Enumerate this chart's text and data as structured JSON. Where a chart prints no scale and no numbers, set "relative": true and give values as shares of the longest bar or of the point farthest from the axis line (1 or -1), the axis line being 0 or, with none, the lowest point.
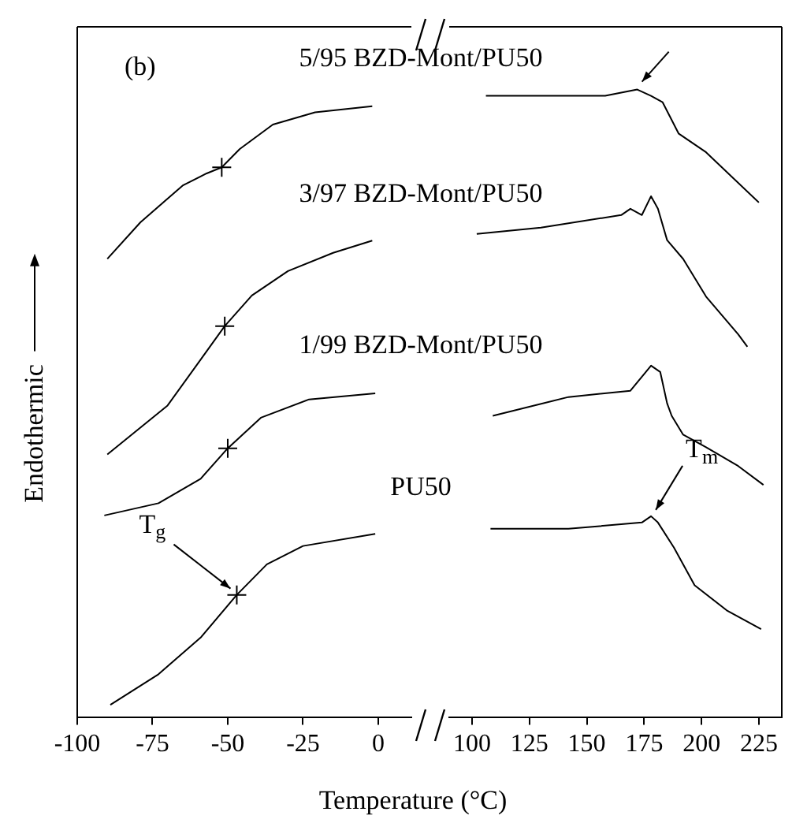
{
  "chart_data": [
    {
      "type": "line",
      "xlabel": "Temperature (°C)",
      "ylabel": "Endothermic",
      "relative": true,
      "xlim": [
        -100,
        11
      ],
      "xticks": [
        -100,
        -75,
        -50,
        -25,
        0
      ],
      "annotations": [
        "(b)",
        {
          "text": "T$_{g}$",
          "x": -47,
          "y": 0.2
        }
      ],
      "series": [
        {
          "name": "5/95 BZD-Mont/PU50",
          "color": "#000000",
          "x": [
            -90,
            -79,
            -65,
            -57,
            -52,
            -46,
            -35,
            -21,
            -2
          ],
          "values": [
            0.75,
            0.81,
            0.87,
            0.89,
            0.9,
            0.93,
            0.97,
            0.99,
            1
          ]
        },
        {
          "name": "3/97 BZD-Mont/PU50",
          "color": "#000000",
          "x": [
            -90,
            -75,
            -70,
            -51,
            -42,
            -30,
            -15,
            -2
          ],
          "values": [
            0.43,
            0.49,
            0.51,
            0.64,
            0.69,
            0.73,
            0.76,
            0.78
          ]
        },
        {
          "name": "1/99 BZD-Mont/PU50",
          "color": "#000000",
          "x": [
            -91,
            -73,
            -59,
            -50,
            -39,
            -23,
            -1
          ],
          "values": [
            0.33,
            0.35,
            0.39,
            0.44,
            0.49,
            0.52,
            0.53
          ]
        },
        {
          "name": "PU50",
          "color": "#000000",
          "x": [
            -89,
            -73,
            -59,
            -47,
            -37,
            -25,
            -1
          ],
          "values": [
            0.02,
            0.07,
            0.13,
            0.2,
            0.25,
            0.28,
            0.3
          ]
        },
        {
          "type": "scatter",
          "marker": "cross",
          "color": "#000000",
          "x": [
            -52,
            -51,
            -50,
            -47
          ],
          "values": [
            0.9,
            0.64,
            0.44,
            0.2
          ]
        }
      ]
    },
    {
      "type": "line",
      "relative": true,
      "xlim": [
        90,
        235
      ],
      "xticks": [
        100,
        125,
        150,
        175,
        200,
        225
      ],
      "annotations": [
        {
          "text": "T$_{m}$",
          "x": 178,
          "y": 0.32
        }
      ],
      "series": [
        {
          "color": "#000000",
          "x": [
            106,
            130,
            158,
            172,
            178,
            183,
            190,
            202,
            225
          ],
          "values": [
            0.99,
            0.99,
            0.99,
            1,
            0.99,
            0.98,
            0.93,
            0.9,
            0.82
          ]
        },
        {
          "color": "#000000",
          "x": [
            102,
            130,
            165,
            169,
            174,
            178,
            181,
            185,
            192,
            202,
            216,
            220
          ],
          "values": [
            0.77,
            0.78,
            0.8,
            0.81,
            0.8,
            0.83,
            0.81,
            0.76,
            0.73,
            0.67,
            0.61,
            0.59
          ]
        },
        {
          "color": "#000000",
          "x": [
            109,
            142,
            169,
            178,
            182,
            185,
            187,
            192,
            202,
            216,
            227
          ],
          "values": [
            0.48,
            0.51,
            0.52,
            0.56,
            0.55,
            0.5,
            0.48,
            0.45,
            0.43,
            0.4,
            0.37
          ]
        },
        {
          "color": "#000000",
          "x": [
            108,
            142,
            174,
            178,
            181,
            188,
            197,
            211,
            226
          ],
          "values": [
            0.3,
            0.3,
            0.31,
            0.32,
            0.31,
            0.27,
            0.21,
            0.17,
            0.14
          ]
        }
      ]
    }
  ]
}
